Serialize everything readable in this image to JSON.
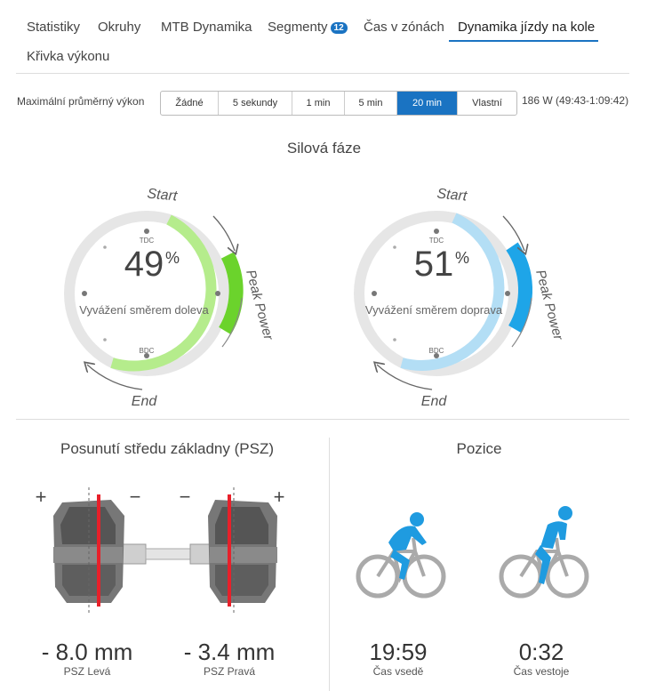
{
  "tabs": [
    {
      "label": "Statistiky"
    },
    {
      "label": "Okruhy"
    },
    {
      "label": "MTB Dynamika"
    },
    {
      "label": "Segmenty",
      "badge": "12"
    },
    {
      "label": "Čas v zónách"
    },
    {
      "label": "Dynamika jízdy na kole",
      "active": true
    },
    {
      "label": "Křivka výkonu"
    }
  ],
  "power_selector": {
    "label": "Maximální průměrný výkon",
    "options": [
      "Žádné",
      "5 sekundy",
      "1 min",
      "5 min",
      "20 min",
      "Vlastní"
    ],
    "selected": "20 min",
    "value": "186 W (49:43-1:09:42)"
  },
  "power_phase": {
    "title": "Silová fáze",
    "left": {
      "percent": "49",
      "unit": "%",
      "caption": "Vyvážení směrem doleva",
      "tdc": "TDC",
      "bdc": "BDC",
      "start": "Start",
      "end": "End",
      "peak": "Peak Power"
    },
    "right": {
      "percent": "51",
      "unit": "%",
      "caption": "Vyvážení směrem doprava",
      "tdc": "TDC",
      "bdc": "BDC",
      "start": "Start",
      "end": "End",
      "peak": "Peak Power"
    }
  },
  "pco": {
    "title": "Posunutí středu základny (PSZ)",
    "left_value": "- 8.0 mm",
    "left_label": "PSZ Levá",
    "right_value": "- 3.4 mm",
    "right_label": "PSZ Pravá",
    "plus": "+",
    "minus": "−"
  },
  "position": {
    "title": "Pozice",
    "seated_value": "19:59",
    "seated_label": "Čas vsedě",
    "standing_value": "0:32",
    "standing_label": "Čas vestoje"
  },
  "colors": {
    "accent": "#1a73c2",
    "left_light": "#b5ec8c",
    "left_peak": "#6bd32c",
    "right_light": "#b3def5",
    "right_peak": "#1ea5e8",
    "pedal_line": "#e8202a",
    "cyclist": "#1f9be0"
  }
}
